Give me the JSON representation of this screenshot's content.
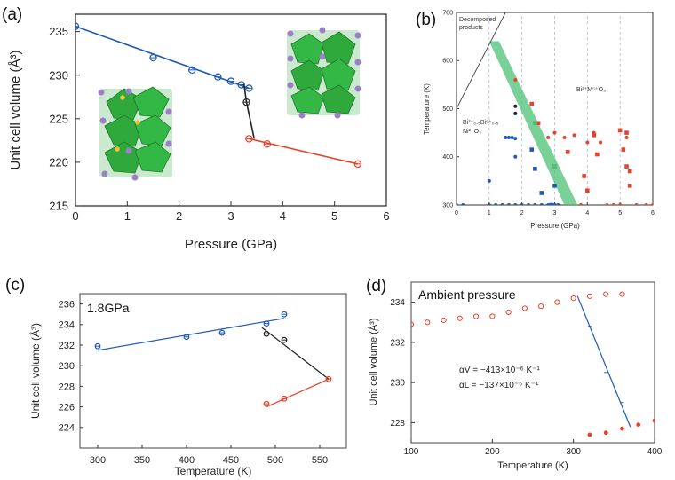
{
  "colors": {
    "blue": "#1f5bb5",
    "red": "#e8402a",
    "black": "#222222",
    "band": "#4cc276",
    "crystal_green": "#2fa83c",
    "atom_purple": "#9b7fc7",
    "atom_yellow": "#e8c23a"
  },
  "chart_data": [
    {
      "id": "a",
      "type": "scatter",
      "panel_label": "(a)",
      "xlabel": "Pressure (GPa)",
      "ylabel": "Unit cell volume (Å³)",
      "xlim": [
        0,
        6
      ],
      "ylim": [
        215,
        237
      ],
      "xticks": [
        "0",
        "1",
        "2",
        "3",
        "4",
        "5",
        "6"
      ],
      "yticks": [
        "215",
        "220",
        "225",
        "230",
        "235"
      ],
      "grid": false,
      "series": [
        {
          "color": "blue",
          "x": [
            0,
            1.5,
            2.25,
            2.75,
            3.0,
            3.2,
            3.35
          ],
          "y": [
            235.6,
            232.0,
            230.6,
            229.8,
            229.3,
            228.9,
            228.5
          ],
          "fit": [
            [
              0,
              235.6
            ],
            [
              3.35,
              228.5
            ]
          ]
        },
        {
          "color": "black",
          "x": [
            3.3
          ],
          "y": [
            226.9
          ],
          "fit": [
            [
              3.25,
              229.0
            ],
            [
              3.3,
              226.9
            ],
            [
              3.45,
              222.7
            ]
          ]
        },
        {
          "color": "red",
          "x": [
            3.35,
            3.7,
            5.45
          ],
          "y": [
            222.7,
            222.1,
            219.8
          ],
          "fit": [
            [
              3.35,
              222.7
            ],
            [
              5.45,
              219.8
            ]
          ]
        }
      ]
    },
    {
      "id": "b",
      "type": "scatter",
      "panel_label": "(b)",
      "xlabel": "Pressure (GPa)",
      "ylabel": "Temperature (K)",
      "xlim": [
        0,
        6
      ],
      "ylim": [
        300,
        700
      ],
      "xticks": [
        "0",
        "1",
        "2",
        "3",
        "4",
        "5",
        "6"
      ],
      "yticks": [
        "300",
        "400",
        "500",
        "600",
        "700"
      ],
      "grid": "dashed-vertical",
      "annotations": [
        "Decomposed products",
        "Bi³⁺M⁵⁺O₃",
        "Bi³⁺₀.₅Bi⁵⁺₀.₅",
        "Ni²⁺O₃"
      ],
      "band": [
        [
          1.0,
          640
        ],
        [
          1.3,
          640
        ],
        [
          3.7,
          300
        ],
        [
          3.3,
          300
        ]
      ],
      "decomp_line": [
        [
          0,
          500
        ],
        [
          1.5,
          700
        ]
      ],
      "series": [
        {
          "color": "blue",
          "marker": "circle",
          "x": [
            0,
            0.2,
            1.0,
            1.2,
            1.4,
            1.6,
            1.8,
            2.0,
            2.2,
            2.4,
            2.6,
            2.8,
            3.0,
            3.1,
            1.0,
            1.5,
            1.6,
            1.7,
            1.8,
            1.8
          ],
          "y": [
            300,
            300,
            300,
            300,
            300,
            300,
            300,
            300,
            300,
            300,
            300,
            300,
            300,
            300,
            350,
            440,
            440,
            440,
            438,
            400
          ]
        },
        {
          "color": "blue",
          "marker": "square",
          "x": [
            2.3,
            2.4,
            2.6,
            2.9,
            3.0
          ],
          "y": [
            415,
            375,
            325,
            300,
            340
          ]
        },
        {
          "color": "black",
          "marker": "circle",
          "x": [
            1.8,
            1.8
          ],
          "y": [
            505,
            490
          ]
        },
        {
          "color": "red",
          "marker": "circle",
          "x": [
            1.8,
            2.8,
            3.0,
            3.3,
            3.6,
            3.8,
            4.0,
            4.2,
            4.4,
            4.6,
            4.8,
            5.0,
            5.2,
            5.5,
            5.8,
            6.0
          ],
          "y": [
            560,
            440,
            450,
            440,
            445,
            300,
            430,
            450,
            430,
            300,
            300,
            300,
            440,
            300,
            300,
            300
          ]
        },
        {
          "color": "red",
          "marker": "square",
          "x": [
            2.3,
            2.5,
            3.0,
            3.4,
            3.9,
            4.0,
            4.2,
            4.3,
            5.0,
            5.1,
            5.2,
            5.2,
            5.3,
            5.3
          ],
          "y": [
            510,
            470,
            380,
            410,
            360,
            330,
            445,
            405,
            455,
            415,
            450,
            380,
            370,
            340
          ]
        },
        {
          "color": "band",
          "marker": "square",
          "x": [
            2.4,
            3.0
          ],
          "y": [
            470,
            380
          ]
        }
      ]
    },
    {
      "id": "c",
      "type": "scatter",
      "panel_label": "(c)",
      "title": "1.8GPa",
      "xlabel": "Temperature (K)",
      "ylabel": "Unit cell volume (Å³)",
      "xlim": [
        280,
        580
      ],
      "ylim": [
        222,
        237
      ],
      "xticks": [
        "300",
        "350",
        "400",
        "450",
        "500",
        "550"
      ],
      "yticks": [
        "224",
        "226",
        "228",
        "230",
        "232",
        "234",
        "236"
      ],
      "grid": false,
      "series": [
        {
          "color": "blue",
          "x": [
            300,
            400,
            440,
            490,
            510
          ],
          "y": [
            231.9,
            232.8,
            233.2,
            234.1,
            235.0
          ],
          "fit": [
            [
              300,
              231.5
            ],
            [
              510,
              234.6
            ]
          ]
        },
        {
          "color": "black",
          "x": [
            490,
            510
          ],
          "y": [
            233.1,
            232.5
          ],
          "fit": [
            [
              485,
              233.7
            ],
            [
              560,
              228.7
            ]
          ]
        },
        {
          "color": "red",
          "x": [
            490,
            510,
            560
          ],
          "y": [
            226.3,
            226.8,
            228.7
          ],
          "fit": [
            [
              490,
              226.0
            ],
            [
              560,
              228.7
            ]
          ]
        }
      ]
    },
    {
      "id": "d",
      "type": "scatter",
      "panel_label": "(d)",
      "title": "Ambient pressure",
      "xlabel": "Temperature (K)",
      "ylabel": "Unit cell volume (Å³)",
      "xlim": [
        100,
        400
      ],
      "ylim": [
        227,
        235
      ],
      "xticks": [
        "100",
        "200",
        "300",
        "400"
      ],
      "yticks": [
        "228",
        "230",
        "232",
        "234"
      ],
      "grid": false,
      "annotations": [
        "αV = −413×10⁻⁶ K⁻¹",
        "αL = −137×10⁻⁶ K⁻¹"
      ],
      "series": [
        {
          "color": "red",
          "marker": "open",
          "x": [
            100,
            120,
            140,
            160,
            180,
            200,
            220,
            240,
            260,
            280,
            300,
            320,
            340,
            360
          ],
          "y": [
            232.9,
            233.0,
            233.1,
            233.2,
            233.3,
            233.3,
            233.5,
            233.7,
            233.8,
            234.0,
            234.2,
            234.3,
            234.4,
            234.4
          ]
        },
        {
          "color": "red",
          "marker": "filled",
          "x": [
            320,
            340,
            360,
            380,
            400
          ],
          "y": [
            227.4,
            227.5,
            227.7,
            227.9,
            228.1
          ]
        },
        {
          "color": "blue",
          "marker": "tick",
          "x": [
            320,
            340,
            360
          ],
          "y": [
            232.8,
            230.5,
            229.0
          ],
          "fit": [
            [
              305,
              234.3
            ],
            [
              370,
              227.8
            ]
          ]
        }
      ]
    }
  ]
}
